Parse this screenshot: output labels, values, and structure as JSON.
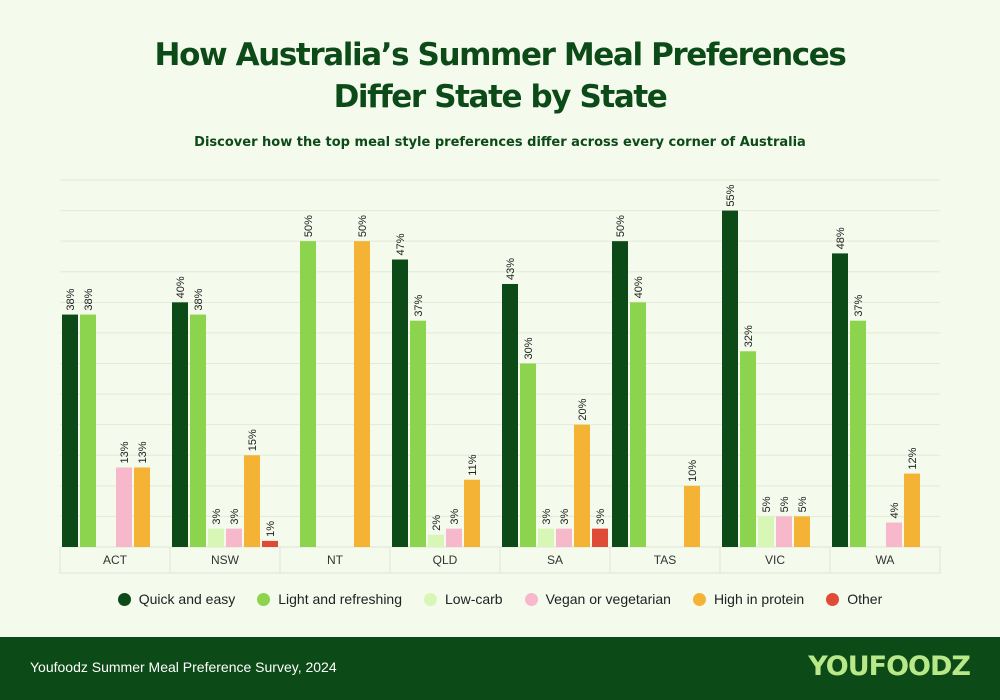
{
  "header": {
    "title_line1": "How Australia’s Summer Meal Preferences",
    "title_line2": "Differ State by State",
    "subtitle": "Discover how the top meal style preferences differ across every corner of Australia"
  },
  "chart_data": {
    "type": "bar",
    "title": "How Australia’s Summer Meal Preferences Differ State by State",
    "subtitle": "Discover how the top meal style preferences differ across every corner of Australia",
    "categories": [
      "ACT",
      "NSW",
      "NT",
      "QLD",
      "SA",
      "TAS",
      "VIC",
      "WA"
    ],
    "series": [
      {
        "name": "Quick and easy",
        "color": "#0c4a17",
        "values": [
          38,
          40,
          0,
          47,
          43,
          50,
          55,
          48
        ]
      },
      {
        "name": "Light and refreshing",
        "color": "#8cd44e",
        "values": [
          38,
          38,
          50,
          37,
          30,
          40,
          32,
          37
        ]
      },
      {
        "name": "Low-carb",
        "color": "#d8f7b6",
        "values": [
          0,
          3,
          0,
          2,
          3,
          0,
          5,
          0
        ]
      },
      {
        "name": "Vegan or vegetarian",
        "color": "#f7b8cb",
        "values": [
          13,
          3,
          0,
          3,
          3,
          0,
          5,
          4
        ]
      },
      {
        "name": "High in protein",
        "color": "#f5b335",
        "values": [
          13,
          15,
          50,
          11,
          20,
          10,
          5,
          12
        ]
      },
      {
        "name": "Other",
        "color": "#e04b37",
        "values": [
          0,
          1,
          0,
          0,
          3,
          0,
          0,
          0
        ]
      }
    ],
    "value_suffix": "%",
    "ylim": [
      0,
      60
    ],
    "grid": true,
    "xlabel": "",
    "ylabel": "",
    "legend_position": "bottom"
  },
  "footer": {
    "source": "Youfoodz Summer Meal Preference Survey, 2024",
    "logo": "YOUFOODZ"
  }
}
